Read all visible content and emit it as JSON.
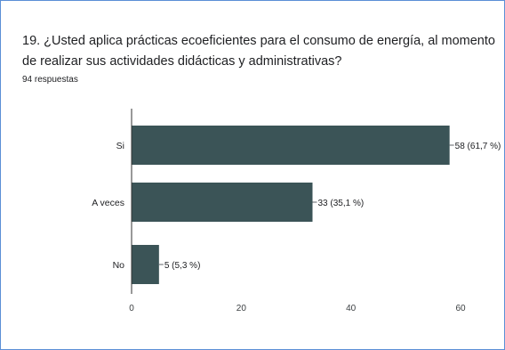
{
  "title": "19. ¿Usted aplica prácticas ecoeficientes para el consumo de energía, al momento de realizar sus actividades didácticas y administrativas?",
  "responses": "94 respuestas",
  "colors": {
    "bar": "#3b5457",
    "axis": "#333333",
    "grid": "#e0e0e0",
    "frame": "#5b8fd6"
  },
  "chart_data": {
    "type": "bar",
    "orientation": "horizontal",
    "categories": [
      "Si",
      "A veces",
      "No"
    ],
    "values": [
      58,
      33,
      5
    ],
    "data_labels": [
      "58 (61,7 %)",
      "33 (35,1 %)",
      "5 (5,3 %)"
    ],
    "xlim": [
      0,
      60
    ],
    "x_ticks": [
      "0",
      "20",
      "40",
      "60"
    ],
    "grid": false,
    "legend": "none"
  }
}
